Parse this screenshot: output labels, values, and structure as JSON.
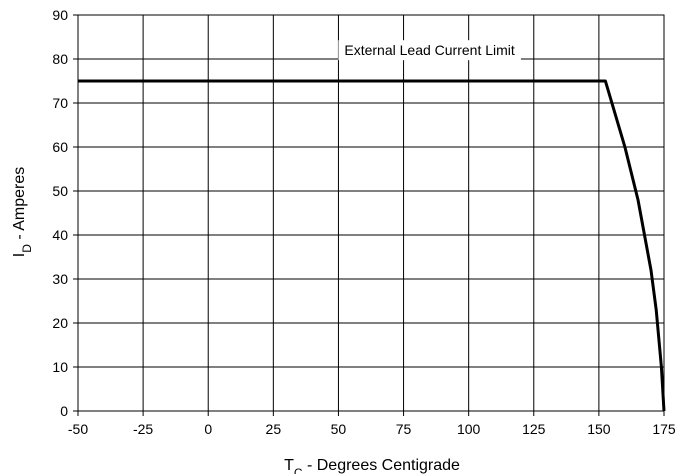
{
  "chart_data": {
    "type": "line",
    "title": "",
    "xlabel": {
      "main": "T",
      "sub": "C",
      "rest": " - Degrees Centigrade"
    },
    "ylabel": {
      "main": "I",
      "sub": "D",
      "rest": " - Amperes"
    },
    "xlim": [
      -50,
      175
    ],
    "ylim": [
      0,
      90
    ],
    "xticks": [
      -50,
      -25,
      0,
      25,
      50,
      75,
      100,
      125,
      150,
      175
    ],
    "yticks": [
      0,
      10,
      20,
      30,
      40,
      50,
      60,
      70,
      80,
      90
    ],
    "grid": true,
    "legend": "none",
    "series": [
      {
        "x": [
          -50,
          152.5,
          155,
          160,
          165,
          170,
          172,
          174,
          175
        ],
        "y": [
          75,
          75,
          70,
          60,
          48,
          32,
          23,
          10,
          0
        ]
      }
    ],
    "annotations": [
      {
        "text": "External Lead Current Limit",
        "x": 85,
        "y": 82
      }
    ]
  }
}
